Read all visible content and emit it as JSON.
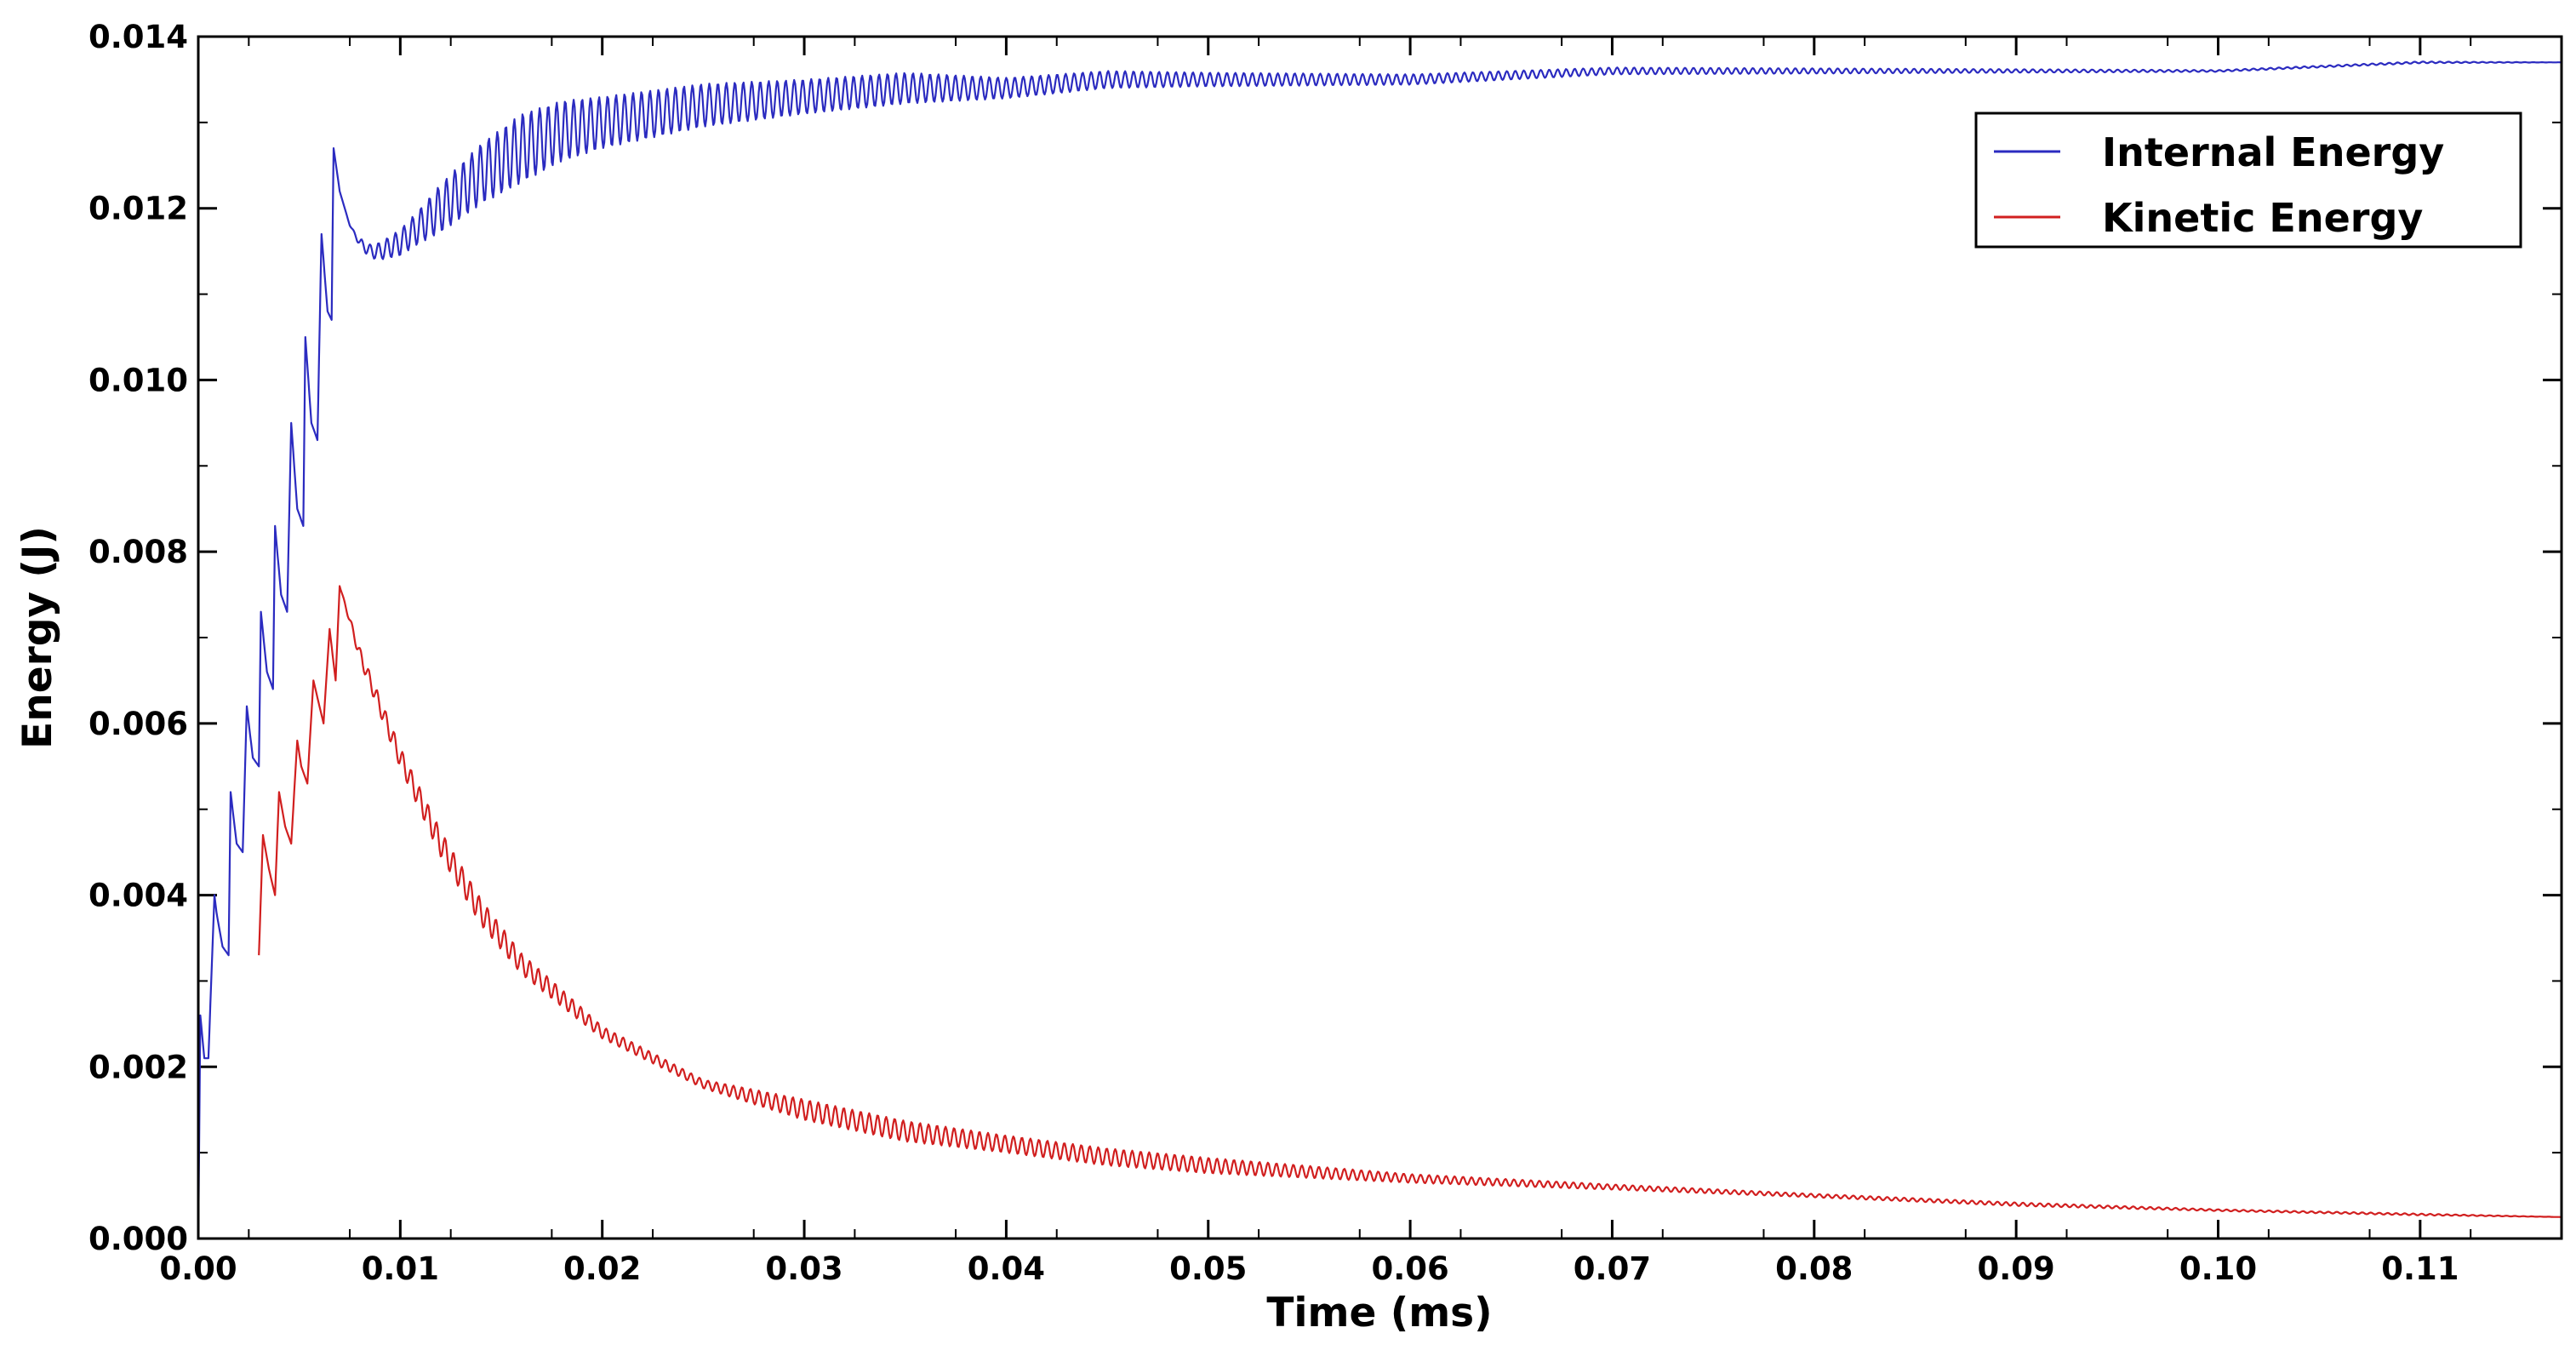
{
  "chart_data": {
    "type": "line",
    "title": "",
    "xlabel": "Time (ms)",
    "ylabel": "Energy (J)",
    "xlim": [
      0,
      0.117
    ],
    "ylim": [
      0,
      0.014
    ],
    "grid": false,
    "legend_position": "top-right",
    "x_ticks": [
      "0.00",
      "0.01",
      "0.02",
      "0.03",
      "0.04",
      "0.05",
      "0.06",
      "0.07",
      "0.08",
      "0.09",
      "0.10",
      "0.11"
    ],
    "x_tick_values": [
      0,
      0.01,
      0.02,
      0.03,
      0.04,
      0.05,
      0.06,
      0.07,
      0.08,
      0.09,
      0.1,
      0.11
    ],
    "y_ticks": [
      "0.000",
      "0.002",
      "0.004",
      "0.006",
      "0.008",
      "0.010",
      "0.012",
      "0.014"
    ],
    "y_tick_values": [
      0,
      0.002,
      0.004,
      0.006,
      0.008,
      0.01,
      0.012,
      0.014
    ],
    "series": [
      {
        "name": "Internal Energy",
        "color": "#2b2bc0",
        "x": [
          0,
          0.0001,
          0.0003,
          0.0005,
          0.0008,
          0.0009,
          0.0012,
          0.0015,
          0.0016,
          0.0019,
          0.0022,
          0.0024,
          0.0027,
          0.003,
          0.0031,
          0.0034,
          0.0037,
          0.0038,
          0.0041,
          0.0044,
          0.0046,
          0.0049,
          0.0052,
          0.0053,
          0.0056,
          0.0059,
          0.0061,
          0.0064,
          0.0066,
          0.0067,
          0.007,
          0.0075,
          0.008,
          0.0085,
          0.009,
          0.01,
          0.011,
          0.012,
          0.014,
          0.016,
          0.018,
          0.02,
          0.025,
          0.03,
          0.035,
          0.04,
          0.045,
          0.05,
          0.06,
          0.07,
          0.08,
          0.09,
          0.1,
          0.11,
          0.117
        ],
        "y": [
          0,
          0.0026,
          0.0021,
          0.0021,
          0.004,
          0.0038,
          0.0034,
          0.0033,
          0.0052,
          0.0046,
          0.0045,
          0.0062,
          0.0056,
          0.0055,
          0.0073,
          0.0066,
          0.0064,
          0.0083,
          0.0075,
          0.0073,
          0.0095,
          0.0085,
          0.0083,
          0.0105,
          0.0095,
          0.0093,
          0.0117,
          0.0108,
          0.0107,
          0.0127,
          0.0122,
          0.0118,
          0.0116,
          0.0115,
          0.0115,
          0.0116,
          0.0118,
          0.012,
          0.0124,
          0.0127,
          0.0129,
          0.013,
          0.0132,
          0.0133,
          0.0134,
          0.0134,
          0.0135,
          0.0135,
          0.0135,
          0.0136,
          0.0136,
          0.0136,
          0.0136,
          0.0137,
          0.0137
        ],
        "oscillation_amplitude": [
          0,
          0,
          0,
          0,
          0,
          0,
          0,
          0,
          0,
          0,
          0,
          0,
          0,
          0,
          0,
          0,
          0,
          0,
          0,
          0,
          0,
          0,
          0,
          0,
          0,
          0,
          0,
          0,
          0,
          0,
          0,
          0,
          5e-05,
          8e-05,
          0.0001,
          0.00015,
          0.0002,
          0.00028,
          0.00035,
          0.0004,
          0.00035,
          0.0003,
          0.00025,
          0.0002,
          0.00018,
          0.00012,
          0.0001,
          8e-05,
          6e-05,
          4e-05,
          3e-05,
          2e-05,
          1e-05,
          1e-05,
          0
        ]
      },
      {
        "name": "Kinetic Energy",
        "color": "#d11f1f",
        "x": [
          0.003,
          0.0032,
          0.0035,
          0.0038,
          0.004,
          0.0043,
          0.0046,
          0.0049,
          0.0051,
          0.0054,
          0.0057,
          0.006,
          0.0062,
          0.0065,
          0.0068,
          0.007,
          0.0075,
          0.008,
          0.009,
          0.01,
          0.012,
          0.014,
          0.016,
          0.018,
          0.02,
          0.025,
          0.03,
          0.035,
          0.04,
          0.045,
          0.05,
          0.06,
          0.07,
          0.08,
          0.09,
          0.1,
          0.11,
          0.117
        ],
        "y": [
          0.0033,
          0.0047,
          0.0043,
          0.004,
          0.0052,
          0.0048,
          0.0046,
          0.0058,
          0.0055,
          0.0053,
          0.0065,
          0.0062,
          0.006,
          0.0071,
          0.0065,
          0.0076,
          0.0072,
          0.0068,
          0.0062,
          0.0056,
          0.0046,
          0.0038,
          0.0032,
          0.0028,
          0.0024,
          0.0018,
          0.0015,
          0.00125,
          0.0011,
          0.00095,
          0.00085,
          0.0007,
          0.0006,
          0.0005,
          0.0004,
          0.00033,
          0.00028,
          0.00025
        ],
        "oscillation_amplitude": [
          0,
          0,
          0,
          0,
          0,
          0,
          0,
          0,
          0,
          0,
          0,
          0,
          0,
          0,
          0,
          0,
          4e-05,
          8e-05,
          0.0001,
          0.00012,
          0.00015,
          0.00015,
          0.00012,
          0.0001,
          7e-05,
          5e-05,
          0.00012,
          0.00012,
          0.0001,
          0.0001,
          9e-05,
          5e-05,
          3e-05,
          2e-05,
          2e-05,
          1e-05,
          1e-05,
          0
        ]
      }
    ]
  }
}
